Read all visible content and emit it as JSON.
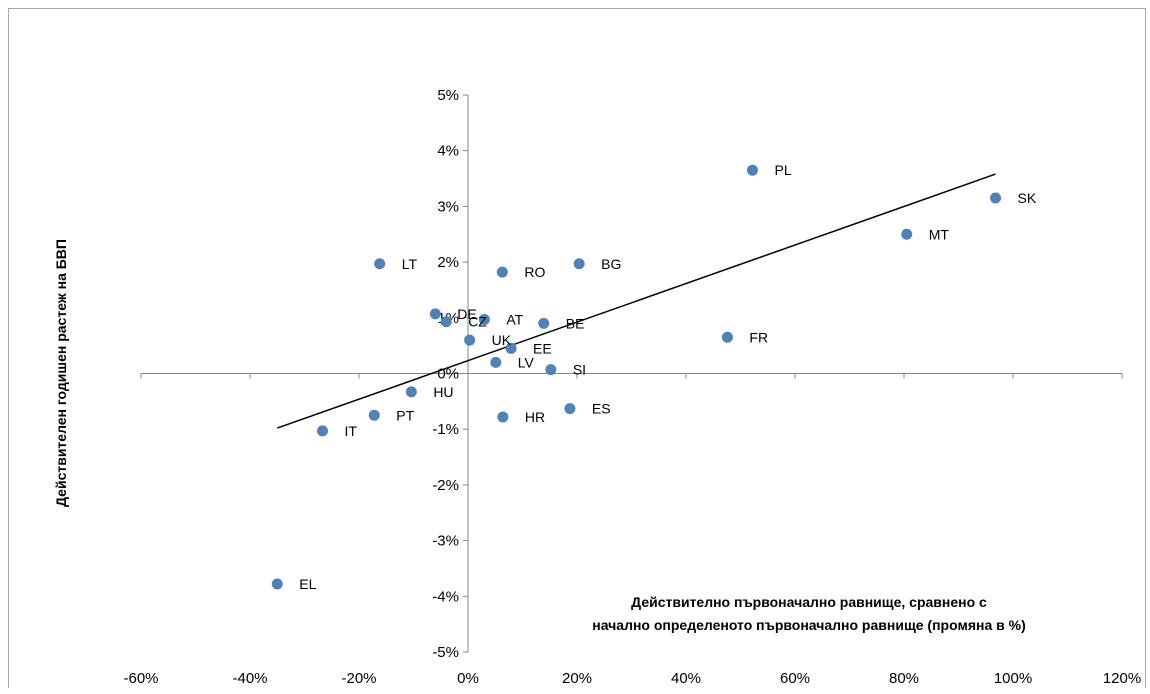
{
  "chart_data": {
    "type": "scatter",
    "title": "",
    "xlabel_lines": [
      "Действително първоначално равнище, сравнено с",
      "начално определеното първоначално равнище (промяна в %)"
    ],
    "ylabel": "Действителен годишен растеж на БВП",
    "xlim": [
      -60,
      120
    ],
    "ylim": [
      -5,
      5
    ],
    "x_unit": "%",
    "y_unit": "%",
    "x_ticks": [
      -60,
      -40,
      -20,
      0,
      20,
      40,
      60,
      80,
      100,
      120
    ],
    "y_ticks": [
      -5,
      -4,
      -3,
      -2,
      -1,
      0,
      1,
      2,
      3,
      4,
      5
    ],
    "x_tick_labels": [
      "-60%",
      "-40%",
      "-20%",
      "0%",
      "20%",
      "40%",
      "60%",
      "80%",
      "100%",
      "120%"
    ],
    "y_tick_labels": [
      "-5%",
      "-4%",
      "-3%",
      "-2%",
      "-1%",
      "0%",
      "1%",
      "2%",
      "3%",
      "4%",
      "5%"
    ],
    "grid": false,
    "legend": "none",
    "point_color": "#4f81bd",
    "points": [
      {
        "label": "PL",
        "x": 52.2,
        "y": 3.65
      },
      {
        "label": "SK",
        "x": 96.8,
        "y": 3.15
      },
      {
        "label": "MT",
        "x": 80.5,
        "y": 2.5
      },
      {
        "label": "LT",
        "x": -16.2,
        "y": 1.97
      },
      {
        "label": "BG",
        "x": 20.4,
        "y": 1.97
      },
      {
        "label": "RO",
        "x": 6.3,
        "y": 1.82
      },
      {
        "label": "DE",
        "x": -6.0,
        "y": 1.07
      },
      {
        "label": "CZ",
        "x": -4.0,
        "y": 0.93
      },
      {
        "label": "AT",
        "x": 3.0,
        "y": 0.97
      },
      {
        "label": "BE",
        "x": 13.9,
        "y": 0.9
      },
      {
        "label": "FR",
        "x": 47.6,
        "y": 0.65
      },
      {
        "label": "UK",
        "x": 0.3,
        "y": 0.6
      },
      {
        "label": "EE",
        "x": 7.9,
        "y": 0.45
      },
      {
        "label": "LV",
        "x": 5.1,
        "y": 0.2
      },
      {
        "label": "SI",
        "x": 15.2,
        "y": 0.07
      },
      {
        "label": "HU",
        "x": -10.4,
        "y": -0.33
      },
      {
        "label": "ES",
        "x": 18.7,
        "y": -0.63
      },
      {
        "label": "PT",
        "x": -17.2,
        "y": -0.75
      },
      {
        "label": "HR",
        "x": 6.4,
        "y": -0.78
      },
      {
        "label": "IT",
        "x": -26.7,
        "y": -1.03
      },
      {
        "label": "EL",
        "x": -35.0,
        "y": -3.78
      }
    ],
    "trendline": {
      "x": [
        -35.0,
        96.8
      ],
      "y": [
        -0.98,
        3.58
      ],
      "color": "#000000"
    }
  }
}
